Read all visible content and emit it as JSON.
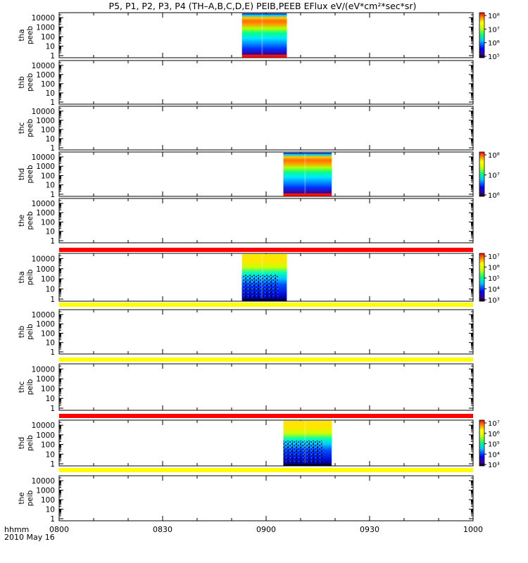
{
  "title": "P5, P1, P2, P3, P4 (TH–A,B,C,D,E) PEIB,PEEB EFlux eV/(eV*cm²*sec*sr)",
  "time_axis": {
    "label_line1": "hhmm",
    "label_line2": "2010 May 16",
    "ticks": [
      "0800",
      "0830",
      "0900",
      "0930",
      "1000"
    ]
  },
  "chart_data": {
    "type": "heatmap",
    "x_unit": "hhmm (UT)",
    "x_range": [
      "08:00",
      "10:00"
    ],
    "y_scale": "log",
    "ytick_labels": [
      "1",
      "10",
      "100",
      "1000",
      "10000"
    ],
    "panels": [
      {
        "name": "tha-peeb",
        "ylabel": [
          "tha",
          "peeb"
        ],
        "has_data": true,
        "data_start": "08:53",
        "data_end": "09:06",
        "colorbar": {
          "ticks": [
            "10⁵",
            "10⁶",
            "10⁷",
            "10⁸"
          ]
        }
      },
      {
        "name": "thb-peeb",
        "ylabel": [
          "thb",
          "peeb"
        ],
        "has_data": false
      },
      {
        "name": "thc-peeb",
        "ylabel": [
          "thc",
          "peeb"
        ],
        "has_data": false
      },
      {
        "name": "thd-peeb",
        "ylabel": [
          "thd",
          "peeb"
        ],
        "has_data": true,
        "data_start": "09:05",
        "data_end": "09:19",
        "colorbar": {
          "ticks": [
            "10⁶",
            "10⁷",
            "10⁸"
          ]
        }
      },
      {
        "name": "the-peeb",
        "ylabel": [
          "the",
          "peeb"
        ],
        "has_data": false
      },
      {
        "name": "tha-peib",
        "ylabel": [
          "tha",
          "peib"
        ],
        "has_data": true,
        "data_start": "08:53",
        "data_end": "09:06",
        "colorbar": {
          "ticks": [
            "10³",
            "10⁴",
            "10⁵",
            "10⁶",
            "10⁷"
          ]
        }
      },
      {
        "name": "thb-peib",
        "ylabel": [
          "thb",
          "peib"
        ],
        "has_data": false
      },
      {
        "name": "thc-peib",
        "ylabel": [
          "thc",
          "peib"
        ],
        "has_data": false
      },
      {
        "name": "thd-peib",
        "ylabel": [
          "thd",
          "peib"
        ],
        "has_data": true,
        "data_start": "09:05",
        "data_end": "09:19",
        "colorbar": {
          "ticks": [
            "10³",
            "10⁴",
            "10⁵",
            "10⁶",
            "10⁷"
          ]
        }
      },
      {
        "name": "the-peib",
        "ylabel": [
          "the",
          "peib"
        ],
        "has_data": false
      }
    ],
    "separator_bars": [
      {
        "after_panel": "the-peeb",
        "color": "#ff0000"
      },
      {
        "after_panel": "tha-peib",
        "color": "#ffff00"
      },
      {
        "after_panel": "thb-peib",
        "color": "#ffff00"
      },
      {
        "after_panel": "thc-peib",
        "color": "#ff0000"
      },
      {
        "after_panel": "thd-peib",
        "color": "#ffff00"
      }
    ]
  }
}
